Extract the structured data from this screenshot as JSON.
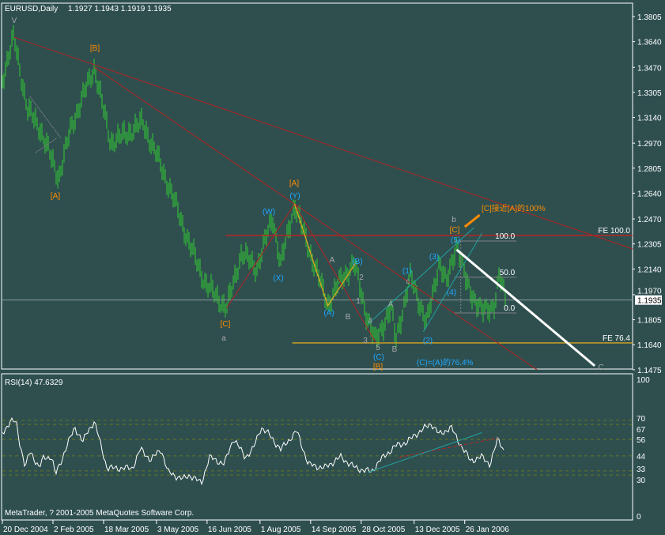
{
  "chart_data": {
    "type": "ohlc-bar",
    "title": "EURUSD,Daily",
    "ohlc_readout": "1.1927 1.1943 1.1919 1.1935",
    "symbol": "EURUSD",
    "timeframe": "Daily",
    "current_price": "1.1935",
    "ylim": [
      1.1475,
      1.3805
    ],
    "price_ticks": [
      "1.3805",
      "1.3640",
      "1.3470",
      "1.3305",
      "1.3140",
      "1.2970",
      "1.2805",
      "1.2640",
      "1.2470",
      "1.2305",
      "1.2140",
      "1.1970",
      "1.1805",
      "1.1640",
      "1.1475"
    ],
    "date_ticks": [
      "20 Dec 2004",
      "2 Feb 2005",
      "18 Mar 2005",
      "3 May 2005",
      "16 Jun 2005",
      "1 Aug 2005",
      "14 Sep 2005",
      "28 Oct 2005",
      "13 Dec 2005",
      "26 Jan 2006"
    ],
    "date_tick_values": [
      "2004-12-20",
      "2005-02-02",
      "2005-03-18",
      "2005-05-03",
      "2005-06-16",
      "2005-08-01",
      "2005-09-14",
      "2005-10-28",
      "2005-12-13",
      "2006-01-26"
    ],
    "price_path": [
      [
        "2004-12-20",
        1.3393
      ],
      [
        "2004-12-30",
        1.3669
      ],
      [
        "2005-01-11",
        1.3185
      ],
      [
        "2005-01-21",
        1.308
      ],
      [
        "2005-02-07",
        1.2741
      ],
      [
        "2005-02-18",
        1.308
      ],
      [
        "2005-03-10",
        1.3471
      ],
      [
        "2005-03-24",
        1.2976
      ],
      [
        "2005-04-07",
        1.3028
      ],
      [
        "2005-04-21",
        1.3106
      ],
      [
        "2005-05-04",
        1.2872
      ],
      [
        "2005-05-15",
        1.2663
      ],
      [
        "2005-06-01",
        1.2298
      ],
      [
        "2005-06-15",
        1.2038
      ],
      [
        "2005-07-03",
        1.1881
      ],
      [
        "2005-07-16",
        1.2246
      ],
      [
        "2005-07-29",
        1.2142
      ],
      [
        "2005-08-12",
        1.2481
      ],
      [
        "2005-08-19",
        1.2168
      ],
      [
        "2005-08-31",
        1.2569
      ],
      [
        "2005-09-16",
        1.2194
      ],
      [
        "2005-09-29",
        1.1907
      ],
      [
        "2005-10-10",
        1.2064
      ],
      [
        "2005-10-22",
        1.2178
      ],
      [
        "2005-11-01",
        1.1855
      ],
      [
        "2005-11-09",
        1.1662
      ],
      [
        "2005-11-23",
        1.1881
      ],
      [
        "2005-11-27",
        1.1673
      ],
      [
        "2005-12-10",
        1.209
      ],
      [
        "2005-12-24",
        1.1777
      ],
      [
        "2006-01-04",
        1.2194
      ],
      [
        "2006-01-10",
        1.2038
      ],
      [
        "2006-01-19",
        1.2314
      ],
      [
        "2006-01-28",
        1.2038
      ],
      [
        "2006-02-10",
        1.1855
      ],
      [
        "2006-02-21",
        1.1907
      ],
      [
        "2006-02-25",
        1.209
      ],
      [
        "2006-03-03",
        1.1935
      ]
    ],
    "trendlines": [
      {
        "from": [
          "2004-12-30",
          1.3669
        ],
        "to": [
          "2006-06-21",
          1.2272
        ],
        "color": "#b22222"
      },
      {
        "from": [
          "2005-03-10",
          1.3471
        ],
        "to": [
          "2006-03-30",
          1.1474
        ],
        "color": "#b22222"
      },
      {
        "from": [
          "2005-07-03",
          1.1881
        ],
        "to": [
          "2005-08-31",
          1.2569
        ],
        "color": "#b22222"
      },
      {
        "from": [
          "2005-08-31",
          1.2569
        ],
        "to": [
          "2005-11-09",
          1.1662
        ],
        "color": "#b22222"
      },
      {
        "from": [
          "2005-11-03",
          1.1777
        ],
        "to": [
          "2006-02-03",
          1.2413
        ],
        "color": "#20a0a0"
      },
      {
        "from": [
          "2005-12-21",
          1.1725
        ],
        "to": [
          "2006-02-10",
          1.2376
        ],
        "color": "#20a0a0"
      },
      {
        "from": [
          "2005-01-13",
          1.3278
        ],
        "to": [
          "2005-02-09",
          1.3002
        ],
        "color": "#808080"
      },
      {
        "from": [
          "2005-01-18",
          1.2908
        ],
        "to": [
          "2005-02-05",
          1.3002
        ],
        "color": "#808080"
      }
    ],
    "zigzag": {
      "points": [
        [
          "2005-08-31",
          1.2569
        ],
        [
          "2005-09-29",
          1.1897
        ],
        [
          "2005-10-23",
          1.2178
        ]
      ],
      "color": "#daa520"
    },
    "projection_line": {
      "from": [
        "2006-01-19",
        1.2267
      ],
      "to": [
        "2006-05-19",
        1.1501
      ],
      "color": "#ffffff"
    },
    "arrow": {
      "from": [
        "2006-01-26",
        1.2418
      ],
      "to": [
        "2006-02-08",
        1.2496
      ],
      "color": "#ff8c00"
    },
    "horizontal_levels": [
      {
        "label": "FE 100.0",
        "price": 1.2361,
        "from": "2005-07-02",
        "color": "#c02020"
      },
      {
        "label": "FE 76.4",
        "price": 1.1652,
        "from": "2005-08-29",
        "color": "#daa520"
      }
    ],
    "fib_levels": [
      {
        "label": "100.0",
        "price": 1.2324
      },
      {
        "label": "50.0",
        "price": 1.2085
      },
      {
        "label": "0.0",
        "price": 1.185
      }
    ],
    "fib_range": [
      "2006-01-17",
      "2006-03-12"
    ],
    "wave_labels": [
      "V",
      "[B]",
      "[A]",
      "[C]",
      "a",
      "(W)",
      "(X)",
      "[A]",
      "(Y)",
      "A",
      "(A)",
      "B",
      "(B)",
      "2",
      "1",
      "4",
      "3",
      "5",
      "(C)",
      "[B]",
      "A",
      "B",
      "(1)",
      "c",
      "(2)",
      "(3)",
      "(4)",
      "(5)",
      "[C]",
      "b",
      "C"
    ],
    "annotations": {
      "c_target": "[C]接近[A]的100%",
      "c_equals": "(C)=(A)的76.4%"
    },
    "colors": {
      "background": "#2f4f4f",
      "bars": "#32cd32",
      "axis": "#ffffff",
      "orange_label": "#ff8c00",
      "cyan_label": "#1ea8ff",
      "gray_label": "#a9a9a9"
    },
    "rsi": {
      "label": "RSI(14) 47.6329",
      "period": 14,
      "value": 47.6329,
      "ticks": [
        "100",
        "70",
        "67",
        "56",
        "44",
        "33",
        "30",
        "0"
      ],
      "levels": [
        70,
        67,
        56,
        44,
        33,
        30
      ],
      "ylim": [
        0,
        100
      ],
      "values": [
        [
          "2004-12-20",
          61
        ],
        [
          "2004-12-27",
          69
        ],
        [
          "2005-01-01",
          69
        ],
        [
          "2005-01-04",
          54
        ],
        [
          "2005-01-09",
          35
        ],
        [
          "2005-01-13",
          48
        ],
        [
          "2005-01-21",
          35
        ],
        [
          "2005-01-25",
          43
        ],
        [
          "2005-02-01",
          43
        ],
        [
          "2005-02-04",
          30
        ],
        [
          "2005-02-08",
          38
        ],
        [
          "2005-02-14",
          51
        ],
        [
          "2005-02-21",
          65
        ],
        [
          "2005-02-28",
          54
        ],
        [
          "2005-03-04",
          62
        ],
        [
          "2005-03-10",
          69
        ],
        [
          "2005-03-14",
          57
        ],
        [
          "2005-03-21",
          35
        ],
        [
          "2005-04-03",
          35
        ],
        [
          "2005-04-12",
          35
        ],
        [
          "2005-04-19",
          49
        ],
        [
          "2005-04-28",
          41
        ],
        [
          "2005-05-07",
          49
        ],
        [
          "2005-05-13",
          32
        ],
        [
          "2005-05-26",
          27
        ],
        [
          "2005-06-01",
          30
        ],
        [
          "2005-06-11",
          24
        ],
        [
          "2005-06-18",
          43
        ],
        [
          "2005-07-01",
          38
        ],
        [
          "2005-07-09",
          57
        ],
        [
          "2005-07-19",
          43
        ],
        [
          "2005-07-26",
          49
        ],
        [
          "2005-08-02",
          65
        ],
        [
          "2005-08-09",
          59.5
        ],
        [
          "2005-08-19",
          48.6
        ],
        [
          "2005-09-02",
          62.2
        ],
        [
          "2005-09-12",
          37.8
        ],
        [
          "2005-09-26",
          35.1
        ],
        [
          "2005-10-10",
          43.2
        ],
        [
          "2005-10-23",
          35.1
        ],
        [
          "2005-11-06",
          32.3
        ],
        [
          "2005-11-13",
          40.5
        ],
        [
          "2005-11-27",
          51.4
        ],
        [
          "2005-12-07",
          54.1
        ],
        [
          "2005-12-14",
          59.5
        ],
        [
          "2005-12-28",
          67.7
        ],
        [
          "2006-01-04",
          59.5
        ],
        [
          "2006-01-14",
          65
        ],
        [
          "2006-01-21",
          54.1
        ],
        [
          "2006-01-31",
          40.5
        ],
        [
          "2006-02-10",
          43.2
        ],
        [
          "2006-02-17",
          37.8
        ],
        [
          "2006-02-24",
          56.8
        ],
        [
          "2006-03-01",
          48
        ]
      ],
      "trendlines": [
        {
          "from": [
            "2005-11-30",
            43
          ],
          "to": [
            "2006-02-24",
            57
          ],
          "color": "#c02020",
          "dashed": true
        },
        {
          "from": [
            "2005-11-03",
            32
          ],
          "to": [
            "2006-02-10",
            61
          ],
          "color": "#20a0a0"
        }
      ]
    },
    "grid": false,
    "legend": "none"
  },
  "footer": {
    "copyright": "MetaTrader, ? 2001-2005 MetaQuotes Software Corp."
  }
}
